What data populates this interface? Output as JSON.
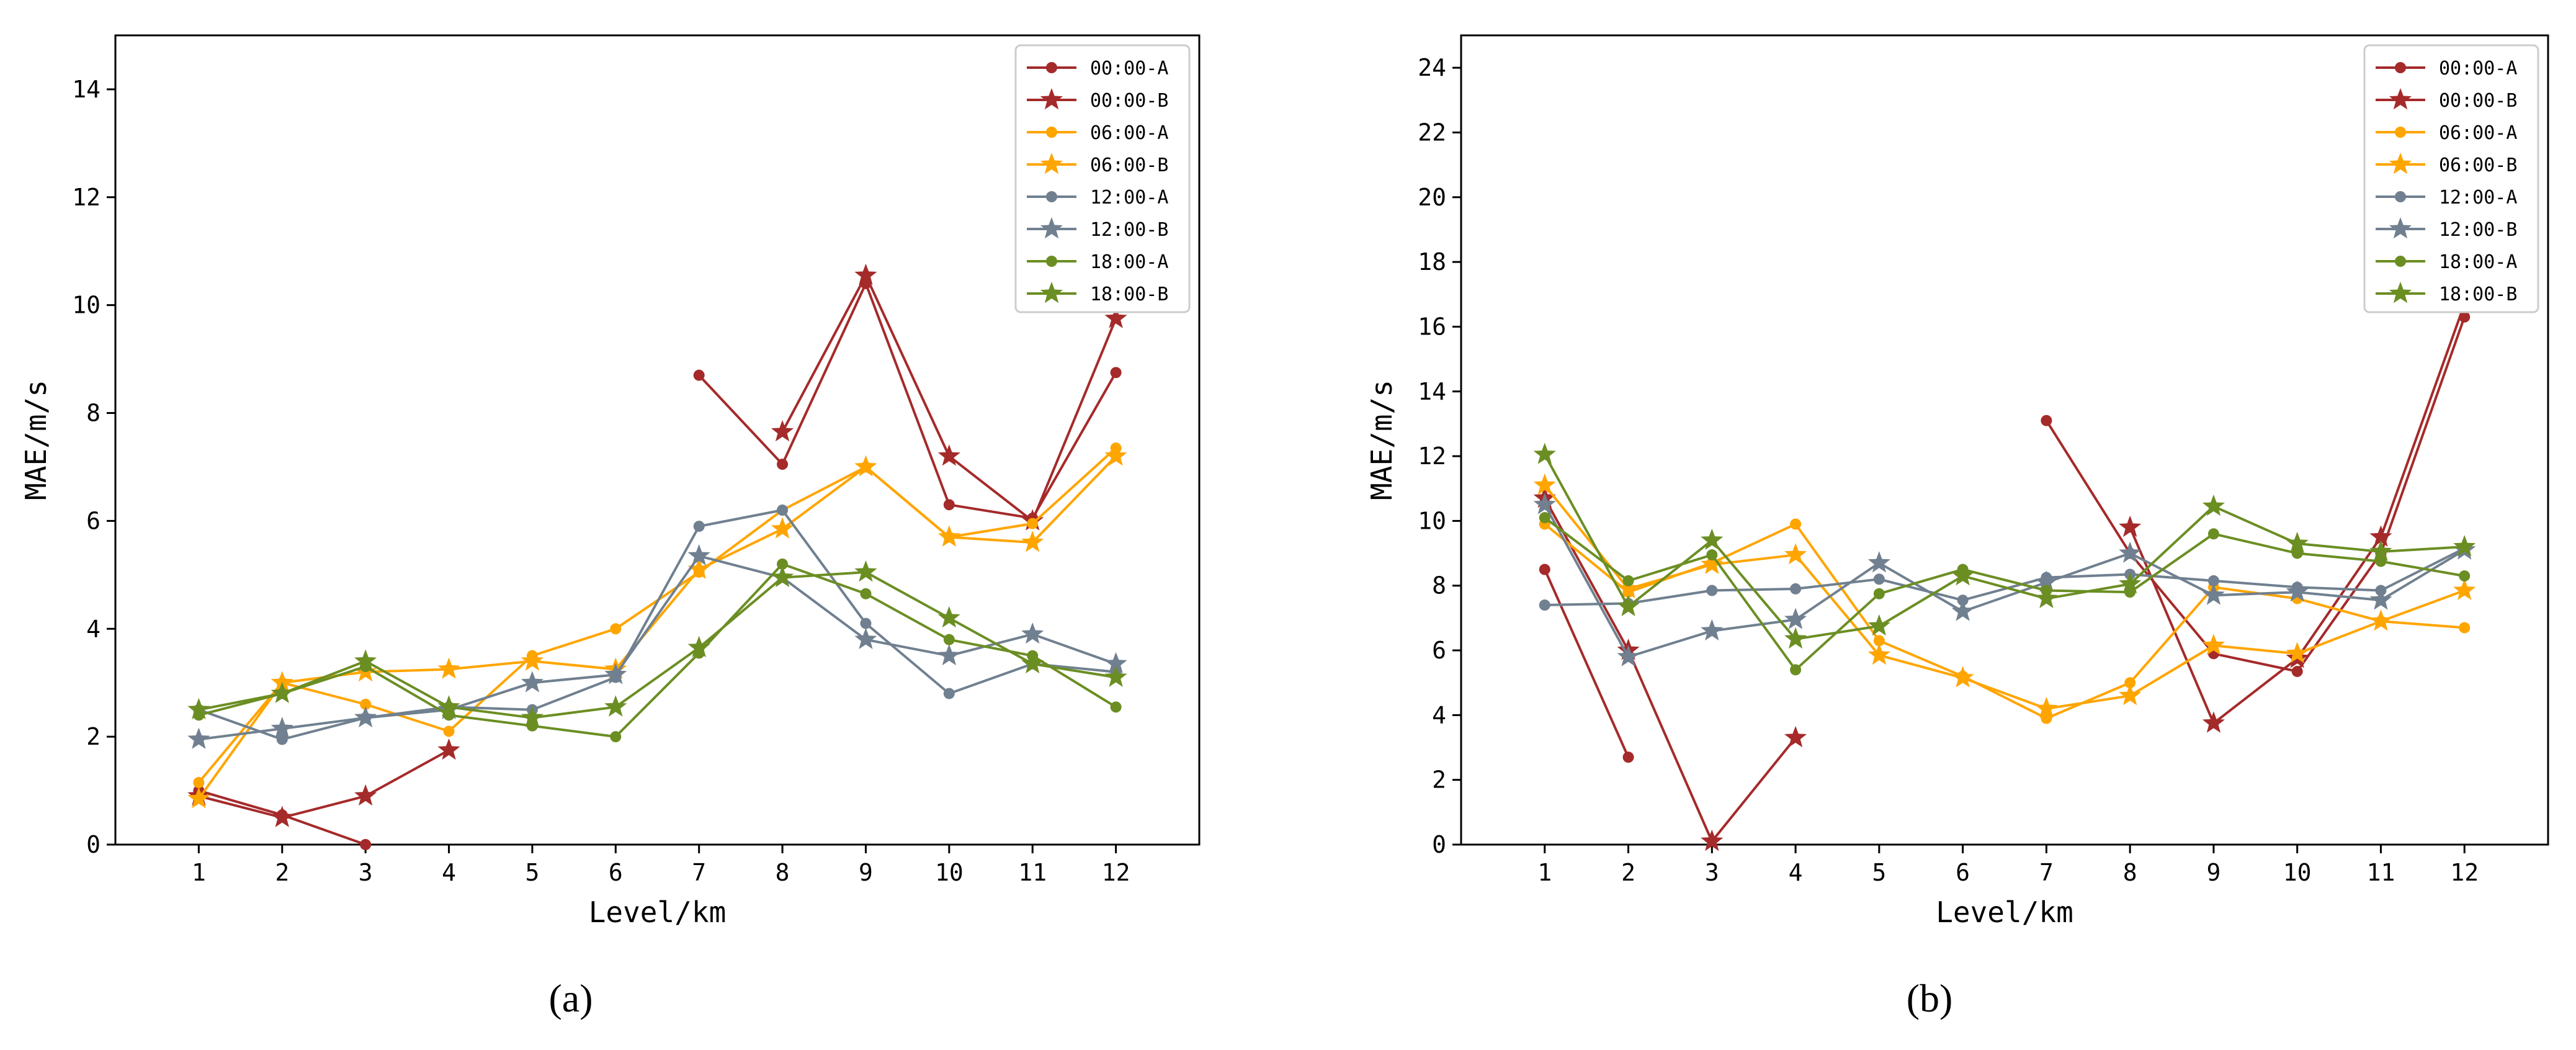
{
  "chart_data": [
    {
      "type": "line",
      "panel_label": "(a)",
      "xlabel": "Level/km",
      "ylabel": "MAE/m/s",
      "x": [
        1,
        2,
        3,
        4,
        5,
        6,
        7,
        8,
        9,
        10,
        11,
        12
      ],
      "xlim": [
        0,
        13
      ],
      "ylim": [
        0,
        15
      ],
      "yticks": [
        0,
        2,
        4,
        6,
        8,
        10,
        12,
        14
      ],
      "legend_position": "top-right",
      "series": [
        {
          "name": "00:00-A",
          "color": "#a52a2a",
          "marker": "circle",
          "values": [
            1.0,
            0.55,
            0.0,
            null,
            null,
            null,
            8.7,
            7.05,
            10.4,
            6.3,
            6.05,
            8.75
          ]
        },
        {
          "name": "00:00-B",
          "color": "#a52a2a",
          "marker": "star",
          "values": [
            0.9,
            0.5,
            0.9,
            1.75,
            null,
            null,
            null,
            7.65,
            10.55,
            7.2,
            6.0,
            9.75
          ]
        },
        {
          "name": "06:00-A",
          "color": "#ffa500",
          "marker": "circle",
          "values": [
            1.15,
            3.0,
            2.6,
            2.1,
            3.5,
            4.0,
            5.05,
            6.2,
            7.0,
            5.7,
            5.95,
            7.35
          ]
        },
        {
          "name": "06:00-B",
          "color": "#ffa500",
          "marker": "star",
          "values": [
            0.85,
            3.0,
            3.2,
            3.25,
            3.4,
            3.25,
            5.1,
            5.85,
            7.0,
            5.7,
            5.6,
            7.2
          ]
        },
        {
          "name": "12:00-A",
          "color": "#708090",
          "marker": "circle",
          "values": [
            2.5,
            1.95,
            2.35,
            2.55,
            2.5,
            3.1,
            5.9,
            6.2,
            4.1,
            2.8,
            3.35,
            3.2
          ]
        },
        {
          "name": "12:00-B",
          "color": "#708090",
          "marker": "star",
          "values": [
            1.95,
            2.15,
            2.35,
            2.5,
            3.0,
            3.15,
            5.35,
            4.95,
            3.8,
            3.5,
            3.9,
            3.35
          ]
        },
        {
          "name": "18:00-A",
          "color": "#6b8e23",
          "marker": "circle",
          "values": [
            2.4,
            2.8,
            3.3,
            2.4,
            2.2,
            2.0,
            3.55,
            5.2,
            4.65,
            3.8,
            3.5,
            2.55
          ]
        },
        {
          "name": "18:00-B",
          "color": "#6b8e23",
          "marker": "star",
          "values": [
            2.5,
            2.8,
            3.4,
            2.55,
            2.35,
            2.55,
            3.65,
            4.95,
            5.05,
            4.2,
            3.35,
            3.1
          ]
        }
      ]
    },
    {
      "type": "line",
      "panel_label": "(b)",
      "xlabel": "Level/km",
      "ylabel": "MAE/m/s",
      "x": [
        1,
        2,
        3,
        4,
        5,
        6,
        7,
        8,
        9,
        10,
        11,
        12
      ],
      "xlim": [
        0,
        13
      ],
      "ylim": [
        0,
        25
      ],
      "yticks": [
        0,
        2,
        4,
        6,
        8,
        10,
        12,
        14,
        16,
        18,
        20,
        22,
        24
      ],
      "legend_position": "top-right",
      "series": [
        {
          "name": "00:00-A",
          "color": "#a52a2a",
          "marker": "circle",
          "values": [
            8.5,
            2.7,
            null,
            null,
            null,
            null,
            13.1,
            9.0,
            5.9,
            5.35,
            9.0,
            16.3
          ]
        },
        {
          "name": "00:00-B",
          "color": "#a52a2a",
          "marker": "star",
          "values": [
            10.7,
            6.0,
            0.1,
            3.3,
            null,
            null,
            null,
            9.8,
            3.75,
            5.75,
            9.5,
            16.7
          ]
        },
        {
          "name": "06:00-A",
          "color": "#ffa500",
          "marker": "circle",
          "values": [
            9.9,
            7.8,
            8.7,
            9.9,
            6.3,
            5.2,
            3.9,
            5.0,
            7.95,
            7.6,
            6.9,
            6.7
          ]
        },
        {
          "name": "06:00-B",
          "color": "#ffa500",
          "marker": "star",
          "values": [
            11.1,
            7.9,
            8.65,
            8.95,
            5.85,
            5.15,
            4.2,
            4.6,
            6.15,
            5.9,
            6.9,
            7.85
          ]
        },
        {
          "name": "12:00-A",
          "color": "#708090",
          "marker": "circle",
          "values": [
            7.4,
            7.45,
            7.85,
            7.9,
            8.2,
            7.55,
            8.25,
            8.35,
            8.15,
            7.95,
            7.85,
            9.15
          ]
        },
        {
          "name": "12:00-B",
          "color": "#708090",
          "marker": "star",
          "values": [
            10.5,
            5.8,
            6.6,
            6.95,
            8.7,
            7.2,
            8.1,
            9.0,
            7.7,
            7.8,
            7.55,
            9.1
          ]
        },
        {
          "name": "18:00-A",
          "color": "#6b8e23",
          "marker": "circle",
          "values": [
            10.1,
            8.15,
            8.95,
            5.4,
            7.75,
            8.5,
            7.85,
            7.8,
            9.6,
            9.0,
            8.75,
            8.3
          ]
        },
        {
          "name": "18:00-B",
          "color": "#6b8e23",
          "marker": "star",
          "values": [
            12.05,
            7.35,
            9.4,
            6.35,
            6.75,
            8.3,
            7.6,
            8.05,
            10.45,
            9.3,
            9.05,
            9.2
          ]
        }
      ]
    }
  ]
}
